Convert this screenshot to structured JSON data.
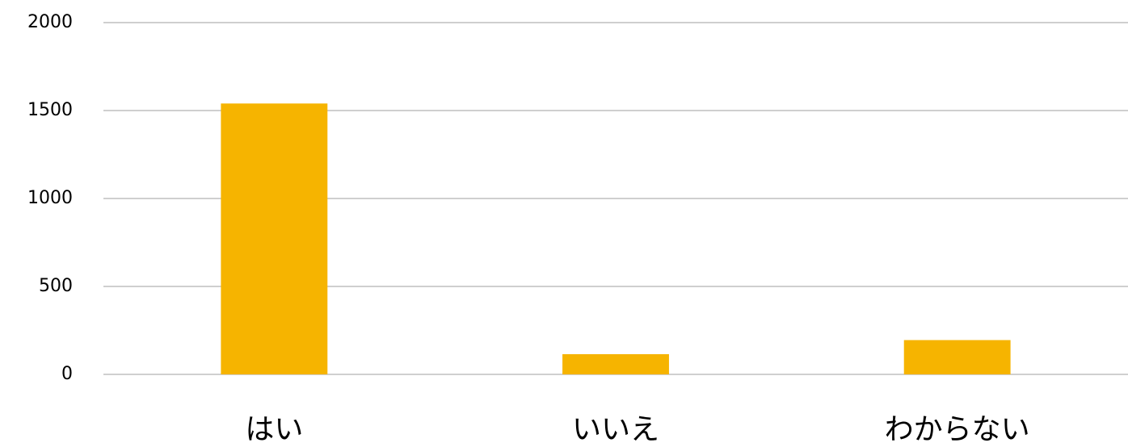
{
  "chart_data": {
    "type": "bar",
    "categories": [
      "はい",
      "いいえ",
      "わからない"
    ],
    "values": [
      1540,
      115,
      195
    ],
    "color": "#f6b400",
    "ylim": [
      0,
      2000
    ],
    "yticks": [
      0,
      500,
      1000,
      1500,
      2000
    ],
    "grid": true
  }
}
